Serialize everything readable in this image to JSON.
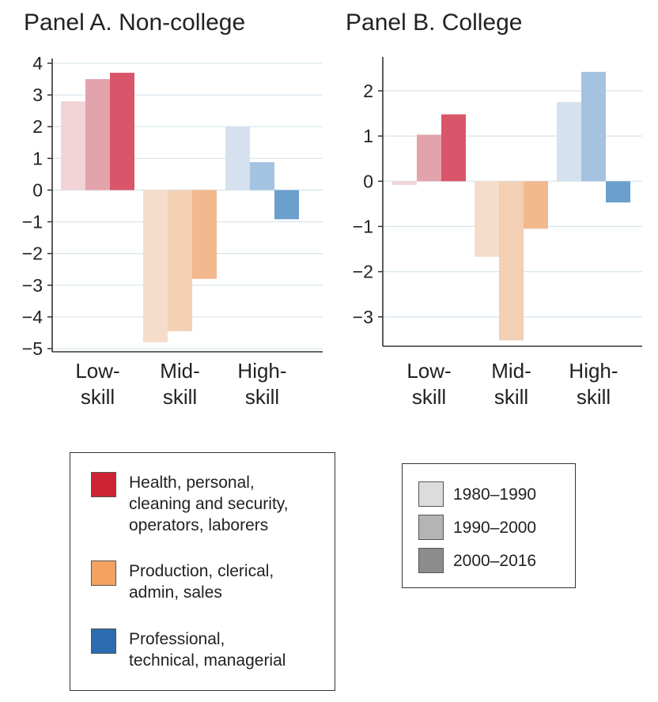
{
  "chart_data": [
    {
      "type": "bar",
      "title": "Panel A. Non-college",
      "categories": [
        "Low-\nskill",
        "Mid-\nskill",
        "High-\nskill"
      ],
      "series": [
        {
          "name": "1980–1990",
          "values": [
            2.8,
            -4.8,
            2.0
          ]
        },
        {
          "name": "1990–2000",
          "values": [
            3.5,
            -4.45,
            0.88
          ]
        },
        {
          "name": "2000–2016",
          "values": [
            3.7,
            -2.8,
            -0.92
          ]
        }
      ],
      "yticks": [
        4,
        3,
        2,
        1,
        0,
        -1,
        -2,
        -3,
        -4,
        -5
      ],
      "ytick_labels": [
        "4",
        "3",
        "2",
        "1",
        "0",
        "−1",
        "−2",
        "−3",
        "−4",
        "−5"
      ],
      "ylim": [
        -5.1,
        4.15
      ],
      "grid": true
    },
    {
      "type": "bar",
      "title": "Panel B. College",
      "categories": [
        "Low-\nskill",
        "Mid-\nskill",
        "High-\nskill"
      ],
      "series": [
        {
          "name": "1980–1990",
          "values": [
            -0.08,
            -1.67,
            1.75
          ]
        },
        {
          "name": "1990–2000",
          "values": [
            1.03,
            -3.52,
            2.42
          ]
        },
        {
          "name": "2000–2016",
          "values": [
            1.48,
            -1.05,
            -0.47
          ]
        }
      ],
      "yticks": [
        2,
        1,
        0,
        -1,
        -2,
        -3
      ],
      "ytick_labels": [
        "2",
        "1",
        "0",
        "−1",
        "−2",
        "−3"
      ],
      "ylim": [
        -3.65,
        2.75
      ],
      "grid": true
    }
  ],
  "palette": {
    "low": [
      "#f2d3d7",
      "#e3a3ad",
      "#d9556a"
    ],
    "mid": [
      "#f6ddcb",
      "#f3cfb4",
      "#f2b88e"
    ],
    "high": [
      "#d5e1ee",
      "#a4c3e1",
      "#6b9fcc"
    ],
    "grid": "#d9e6ee",
    "axis": "#333333"
  },
  "legend_groups": {
    "entries": [
      {
        "label": "Health, personal,\ncleaning and security,\noperators, laborers",
        "color": "#cc2233"
      },
      {
        "label": "Production, clerical,\nadmin, sales",
        "color": "#f4a261"
      },
      {
        "label": "Professional,\ntechnical, managerial",
        "color": "#2b6cb0"
      }
    ]
  },
  "legend_periods": {
    "entries": [
      {
        "label": "1980–1990",
        "color": "#dcdcdc"
      },
      {
        "label": "1990–2000",
        "color": "#b4b4b4"
      },
      {
        "label": "2000–2016",
        "color": "#8c8c8c"
      }
    ]
  }
}
